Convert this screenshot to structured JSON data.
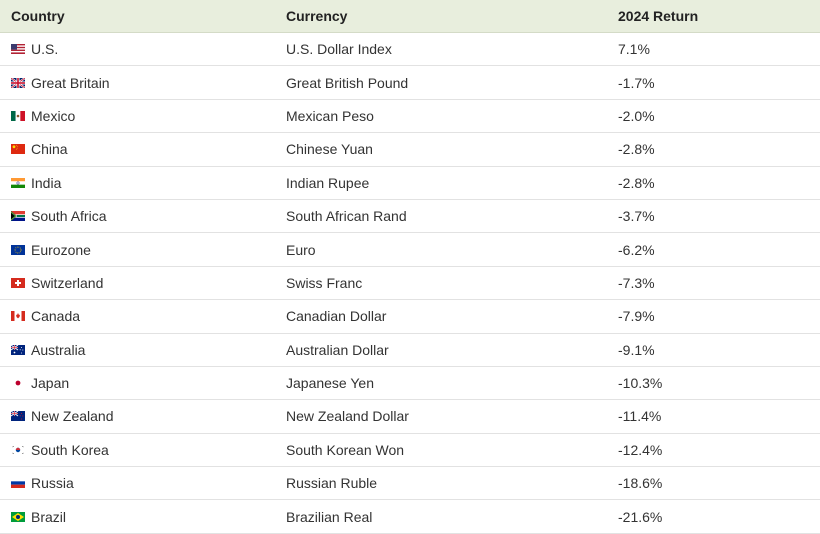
{
  "table": {
    "headers": {
      "country": "Country",
      "currency": "Currency",
      "return": "2024 Return"
    },
    "rows": [
      {
        "flag": "us-flag-icon",
        "country": "U.S.",
        "currency": "U.S. Dollar Index",
        "return": "7.1%"
      },
      {
        "flag": "gb-flag-icon",
        "country": "Great Britain",
        "currency": "Great British Pound",
        "return": "-1.7%"
      },
      {
        "flag": "mx-flag-icon",
        "country": "Mexico",
        "currency": "Mexican Peso",
        "return": "-2.0%"
      },
      {
        "flag": "cn-flag-icon",
        "country": "China",
        "currency": "Chinese Yuan",
        "return": "-2.8%"
      },
      {
        "flag": "in-flag-icon",
        "country": "India",
        "currency": "Indian Rupee",
        "return": "-2.8%"
      },
      {
        "flag": "za-flag-icon",
        "country": "South Africa",
        "currency": "South African Rand",
        "return": "-3.7%"
      },
      {
        "flag": "eu-flag-icon",
        "country": "Eurozone",
        "currency": "Euro",
        "return": "-6.2%"
      },
      {
        "flag": "ch-flag-icon",
        "country": "Switzerland",
        "currency": "Swiss Franc",
        "return": "-7.3%"
      },
      {
        "flag": "ca-flag-icon",
        "country": "Canada",
        "currency": "Canadian Dollar",
        "return": "-7.9%"
      },
      {
        "flag": "au-flag-icon",
        "country": "Australia",
        "currency": "Australian Dollar",
        "return": "-9.1%"
      },
      {
        "flag": "jp-flag-icon",
        "country": "Japan",
        "currency": "Japanese Yen",
        "return": "-10.3%"
      },
      {
        "flag": "nz-flag-icon",
        "country": "New Zealand",
        "currency": "New Zealand Dollar",
        "return": "-11.4%"
      },
      {
        "flag": "kr-flag-icon",
        "country": "South Korea",
        "currency": "South Korean Won",
        "return": "-12.4%"
      },
      {
        "flag": "ru-flag-icon",
        "country": "Russia",
        "currency": "Russian Ruble",
        "return": "-18.6%"
      },
      {
        "flag": "br-flag-icon",
        "country": "Brazil",
        "currency": "Brazilian Real",
        "return": "-21.6%"
      }
    ]
  },
  "colors": {
    "header_bg": "#e8eedd",
    "row_border": "#e2e2e2",
    "text": "#333333"
  }
}
